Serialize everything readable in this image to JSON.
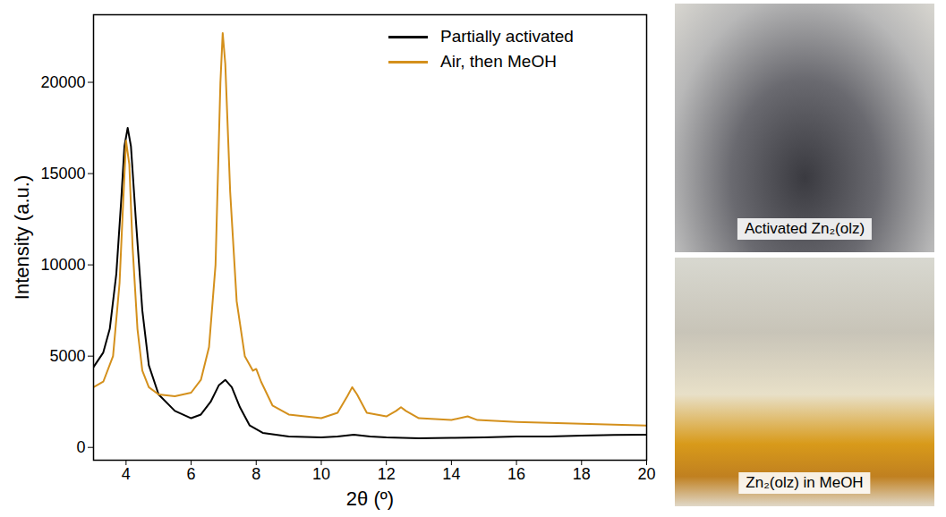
{
  "chart_data": {
    "type": "line",
    "x_label": "2θ (º)",
    "y_label": "Intensity (a.u.)",
    "xlim": [
      3,
      20
    ],
    "xticks": [
      4,
      6,
      8,
      10,
      12,
      14,
      16,
      18,
      20
    ],
    "ylim": [
      -700,
      23700
    ],
    "yticks": [
      0,
      5000,
      10000,
      15000,
      20000
    ],
    "legend": "top-right",
    "grid": false,
    "series": [
      {
        "name": "Partially activated",
        "color": "#000000",
        "x": [
          3.0,
          3.3,
          3.5,
          3.7,
          3.85,
          3.95,
          4.05,
          4.15,
          4.3,
          4.5,
          4.7,
          5.0,
          5.5,
          6.0,
          6.3,
          6.6,
          6.85,
          7.05,
          7.25,
          7.5,
          7.8,
          8.2,
          9,
          10,
          10.5,
          11,
          11.5,
          12,
          13,
          14,
          15,
          16,
          17,
          18,
          19,
          20
        ],
        "values": [
          4400,
          5200,
          6500,
          9500,
          13500,
          16500,
          17500,
          16500,
          12500,
          7500,
          4500,
          2900,
          2000,
          1600,
          1800,
          2500,
          3400,
          3700,
          3300,
          2200,
          1200,
          800,
          600,
          550,
          600,
          700,
          600,
          550,
          500,
          520,
          550,
          600,
          600,
          650,
          680,
          700
        ]
      },
      {
        "name": "Air, then MeOH",
        "color": "#d4901c",
        "x": [
          3.0,
          3.3,
          3.6,
          3.8,
          3.9,
          4.0,
          4.1,
          4.2,
          4.35,
          4.5,
          4.7,
          5.0,
          5.5,
          6.0,
          6.3,
          6.55,
          6.75,
          6.9,
          6.97,
          7.05,
          7.2,
          7.4,
          7.65,
          7.9,
          8.0,
          8.15,
          8.5,
          9.0,
          10.0,
          10.5,
          10.8,
          10.95,
          11.1,
          11.4,
          12.0,
          12.3,
          12.45,
          12.6,
          13.0,
          14.0,
          14.5,
          14.8,
          16.0,
          18.0,
          20.0
        ],
        "values": [
          3300,
          3600,
          5000,
          9000,
          13000,
          16800,
          15500,
          11000,
          6500,
          4200,
          3300,
          2900,
          2800,
          3000,
          3700,
          5500,
          10000,
          20000,
          22700,
          21000,
          14000,
          8000,
          5000,
          4200,
          4300,
          3600,
          2300,
          1800,
          1600,
          1900,
          2800,
          3300,
          2900,
          1900,
          1700,
          2000,
          2200,
          2000,
          1600,
          1500,
          1700,
          1500,
          1400,
          1300,
          1200
        ]
      }
    ]
  },
  "photos": [
    {
      "caption": "Activated Zn₂(olz)"
    },
    {
      "caption": "Zn₂(olz) in MeOH"
    }
  ]
}
